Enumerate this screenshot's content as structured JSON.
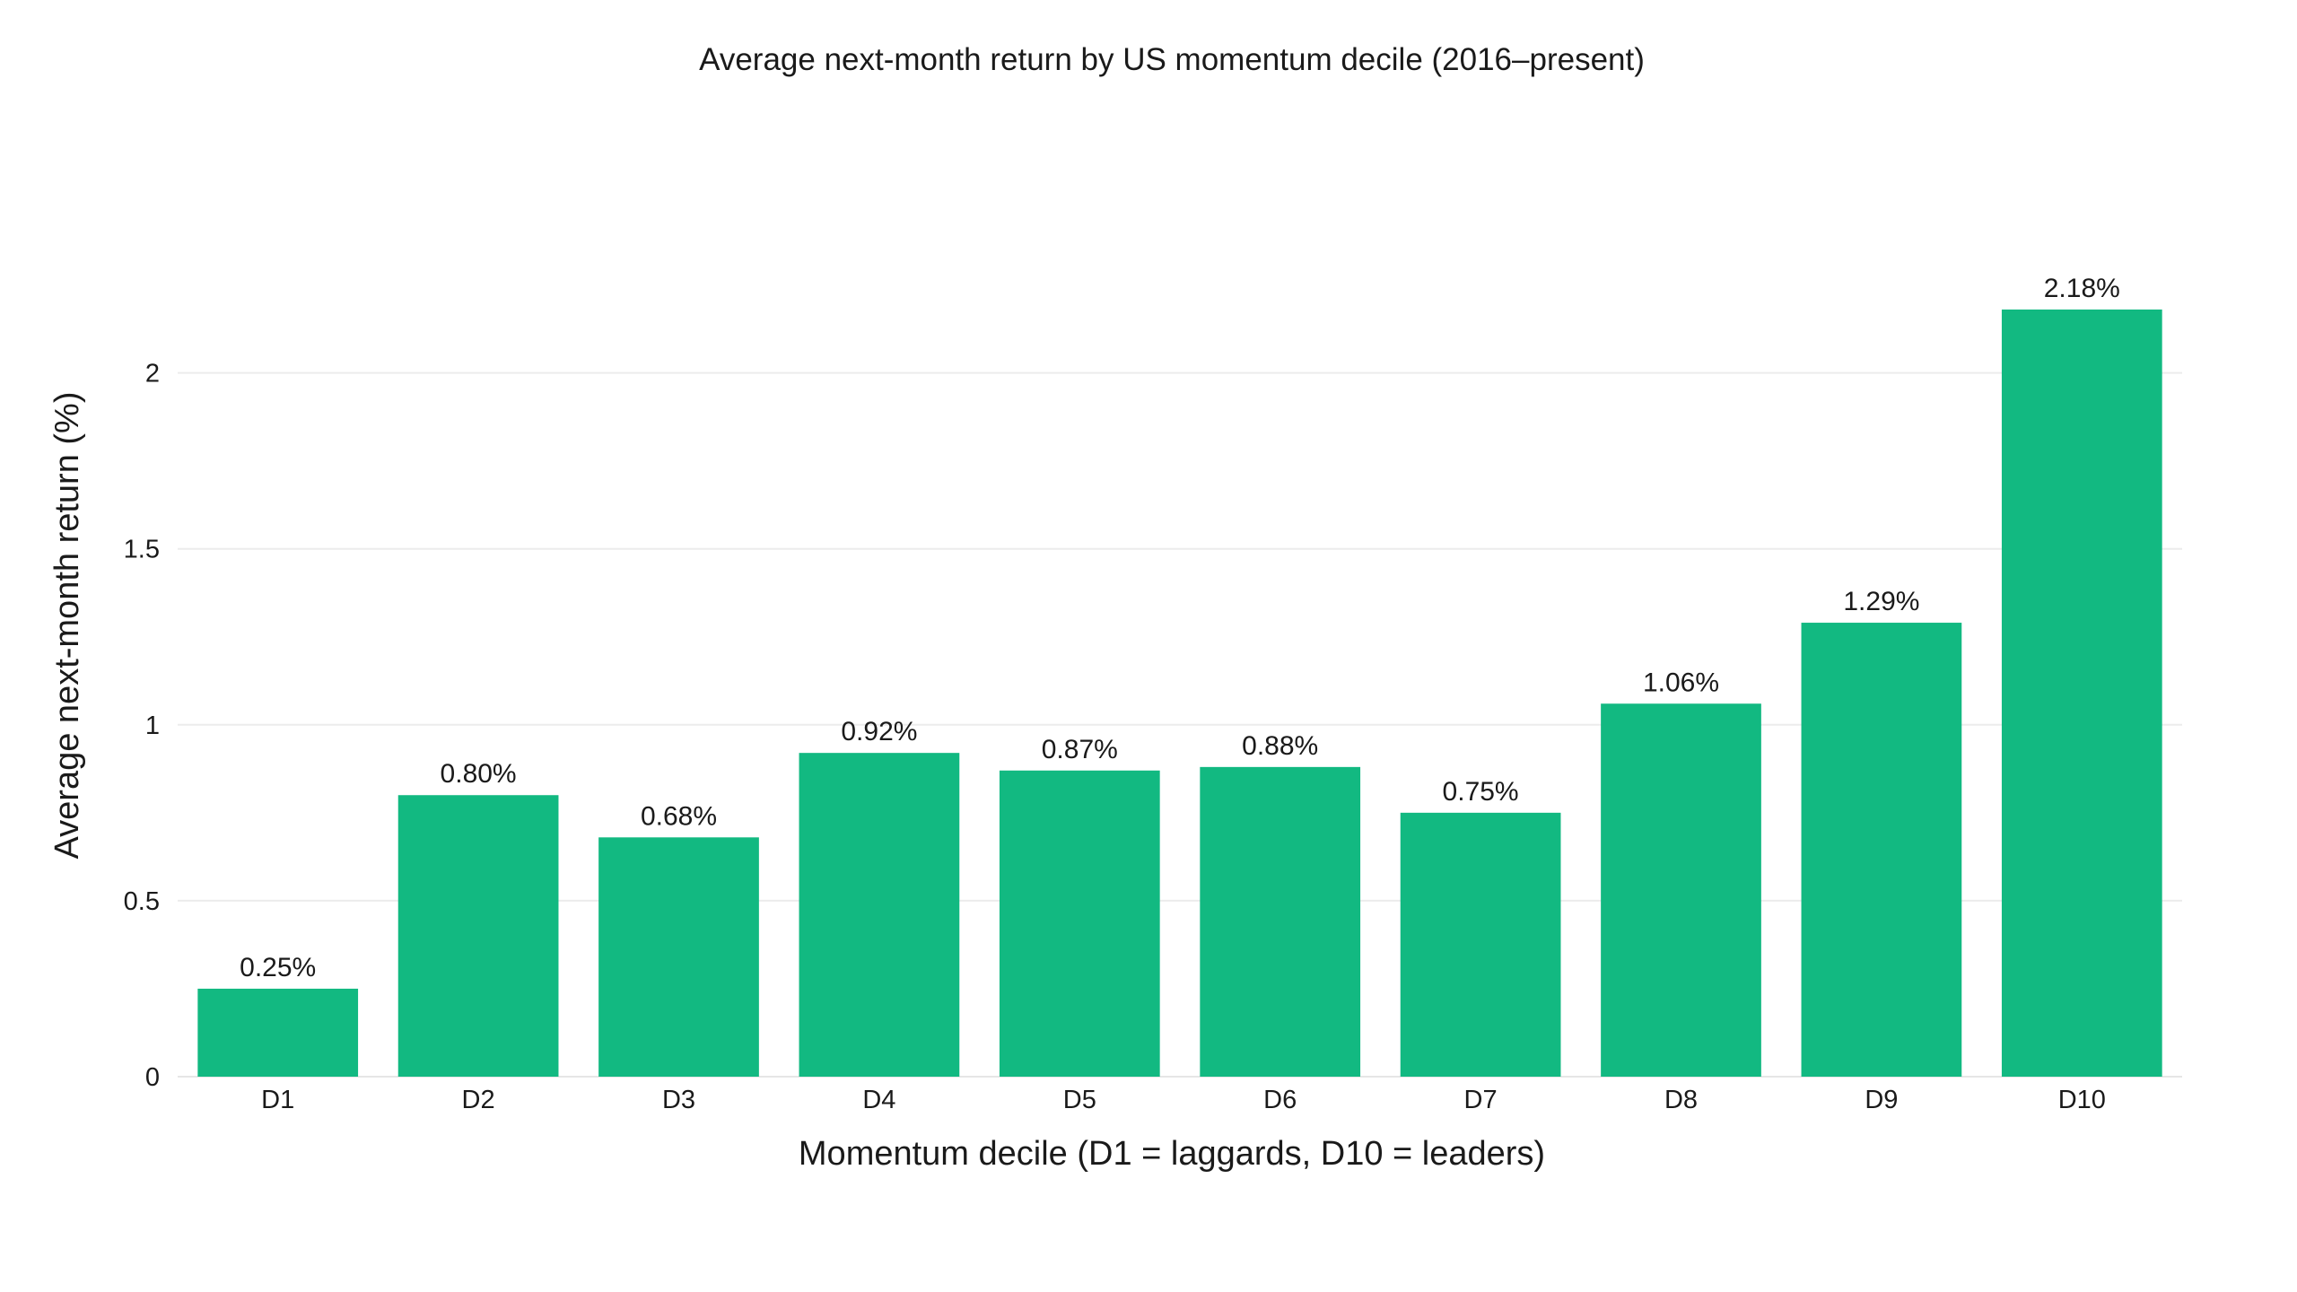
{
  "chart_data": {
    "type": "bar",
    "title": "Average next-month return by US momentum decile (2016–present)",
    "xlabel": "Momentum decile (D1 = laggards, D10 = leaders)",
    "ylabel": "Average next-month return (%)",
    "categories": [
      "D1",
      "D2",
      "D3",
      "D4",
      "D5",
      "D6",
      "D7",
      "D8",
      "D9",
      "D10"
    ],
    "values": [
      0.25,
      0.8,
      0.68,
      0.92,
      0.87,
      0.88,
      0.75,
      1.06,
      1.29,
      2.18
    ],
    "data_labels": [
      "0.25%",
      "0.80%",
      "0.68%",
      "0.92%",
      "0.87%",
      "0.88%",
      "0.75%",
      "1.06%",
      "1.29%",
      "2.18%"
    ],
    "yticks": [
      0,
      0.5,
      1,
      1.5,
      2
    ],
    "ytick_labels": [
      "0",
      "0.5",
      "1",
      "1.5",
      "2"
    ],
    "ylim": [
      0,
      2.2947
    ],
    "grid": true,
    "bar_color": "#12b981"
  }
}
